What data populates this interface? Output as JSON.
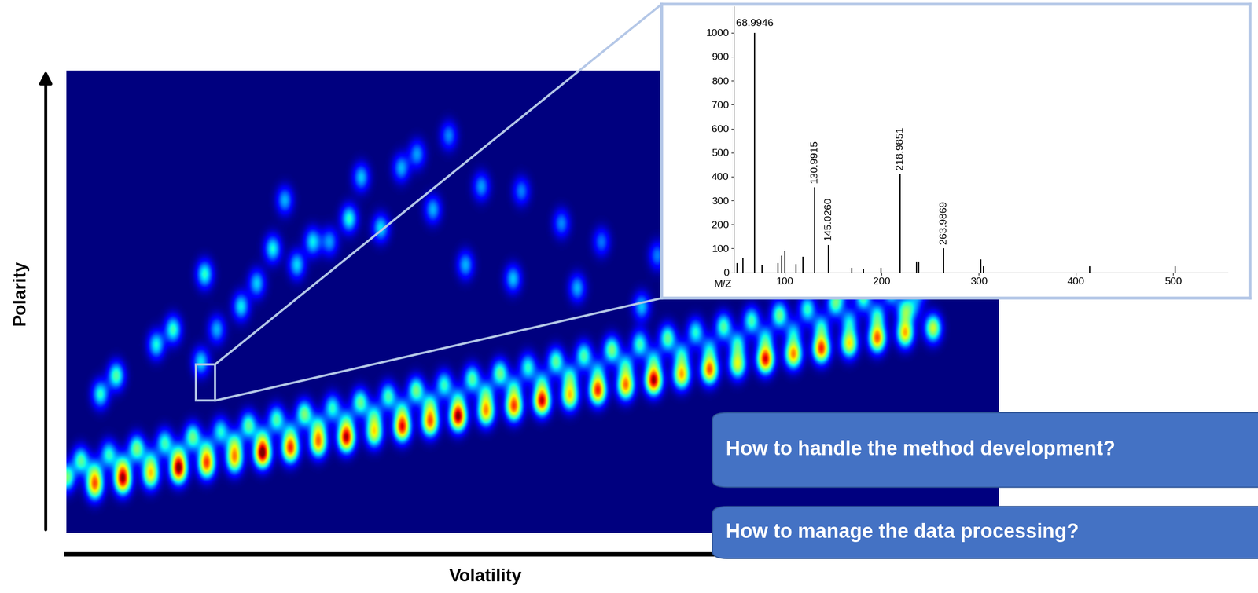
{
  "chart_data": [
    {
      "type": "heatmap",
      "x_label": "Volatility",
      "y_label": "Polarity",
      "xlim": [
        0,
        100
      ],
      "ylim": [
        0,
        100
      ],
      "zlim": [
        0,
        100
      ],
      "tick_labels": false,
      "x": [
        3,
        6,
        9,
        12,
        15,
        18,
        21,
        24,
        27,
        30,
        33,
        36,
        39,
        42,
        45,
        48,
        51,
        54,
        57,
        60,
        63,
        66,
        69,
        72,
        75,
        78,
        81,
        84,
        87,
        90,
        93,
        1.5,
        4.5,
        7.5,
        10.5,
        13.5,
        16.5,
        19.5,
        22.5,
        25.5,
        28.5,
        31.5,
        34.5,
        37.5,
        40.5,
        43.5,
        46.5,
        49.5,
        52.5,
        55.5,
        58.5,
        61.5,
        64.5,
        67.5,
        70.5,
        73.5,
        76.5,
        79.5,
        82.5,
        85.5,
        88.5,
        91.5,
        0,
        3,
        6,
        9,
        12,
        15,
        18,
        21,
        24,
        27,
        30,
        33,
        36,
        39,
        42,
        45,
        48,
        51,
        54,
        57,
        60,
        63,
        66,
        69,
        72,
        75,
        78,
        81,
        84,
        87,
        90,
        5.3,
        3.6,
        9.6,
        11.4,
        14.4,
        14.8,
        16.1,
        18.7,
        20.4,
        22.1,
        23.4,
        24.7,
        26.4,
        28.2,
        30.3,
        31.6,
        33.7,
        35.9,
        37.6,
        39.3,
        41,
        42.8,
        44.5,
        47.9,
        48.8,
        53.1,
        54.8,
        57.4,
        61.7,
        63.4,
        68.6,
        75.5,
        83.2,
        91
      ],
      "y": [
        10.1,
        11.3,
        12.4,
        13.6,
        14.7,
        15.8,
        17.0,
        18.1,
        19.3,
        20.4,
        21.5,
        22.7,
        23.8,
        25.0,
        26.1,
        27.2,
        28.4,
        29.5,
        30.7,
        31.8,
        32.9,
        34.1,
        35.2,
        36.4,
        37.5,
        38.6,
        39.8,
        40.9,
        42.1,
        43.2,
        44.3,
        15.6,
        16.9,
        18.2,
        19.4,
        20.7,
        21.9,
        23.2,
        24.5,
        25.7,
        27.0,
        28.2,
        29.5,
        30.8,
        32.0,
        33.3,
        34.5,
        35.8,
        37.1,
        38.3,
        39.6,
        40.8,
        42.1,
        43.4,
        44.6,
        45.9,
        47.1,
        48.4,
        49.7,
        50.9,
        52.2,
        53.4,
        12.0,
        13.2,
        14.4,
        15.6,
        16.8,
        18.0,
        19.2,
        20.4,
        21.6,
        22.8,
        24.0,
        25.2,
        26.4,
        27.6,
        28.8,
        30.0,
        31.2,
        32.4,
        33.6,
        34.8,
        36.0,
        37.2,
        38.4,
        39.6,
        40.8,
        42.0,
        43.2,
        44.4,
        45.6,
        46.8,
        48.0,
        34,
        30,
        40.7,
        44,
        37,
        56,
        44,
        49,
        54,
        61.5,
        72,
        58,
        63,
        63,
        68,
        77,
        66,
        79,
        82,
        70,
        86,
        58,
        75,
        55,
        74,
        67,
        53,
        63,
        49,
        60,
        58,
        55,
        53,
        49
      ],
      "values": [
        70,
        85,
        60,
        90,
        75,
        65,
        95,
        80,
        70,
        90,
        60,
        85,
        75,
        95,
        70,
        80,
        90,
        65,
        85,
        75,
        95,
        70,
        80,
        60,
        90,
        75,
        85,
        65,
        80,
        70,
        60,
        45,
        40,
        50,
        42,
        48,
        38,
        46,
        44,
        50,
        40,
        47,
        43,
        49,
        41,
        45,
        48,
        40,
        46,
        44,
        50,
        42,
        47,
        39,
        45,
        43,
        48,
        41,
        46,
        44,
        40,
        42,
        50,
        35,
        40,
        30,
        38,
        34,
        42,
        36,
        30,
        40,
        33,
        37,
        35,
        41,
        32,
        39,
        36,
        34,
        40,
        31,
        38,
        35,
        37,
        33,
        39,
        36,
        32,
        38,
        34,
        40,
        45,
        45,
        40,
        38,
        42,
        35,
        40,
        30,
        36,
        33,
        38,
        30,
        34,
        36,
        28,
        40,
        32,
        35,
        30,
        28,
        30,
        26,
        30,
        28,
        32,
        25,
        26,
        30,
        24,
        32,
        25,
        24,
        22,
        22,
        20
      ]
    },
    {
      "type": "stem",
      "x_label": "M/Z",
      "color": "#000000",
      "x": [
        51,
        57,
        68.9946,
        77,
        93,
        97,
        100,
        112,
        119,
        130.9915,
        145.026,
        169,
        181,
        199,
        218.9851,
        236,
        238,
        263.9869,
        302,
        305,
        414,
        502
      ],
      "values": [
        40,
        60,
        1000,
        30,
        40,
        70,
        90,
        35,
        65,
        355,
        115,
        20,
        15,
        20,
        410,
        45,
        45,
        100,
        55,
        25,
        25,
        25
      ],
      "labels": [
        null,
        null,
        "68.9946",
        null,
        null,
        null,
        null,
        null,
        null,
        "130.9915",
        "145.0260",
        null,
        null,
        null,
        "218.9851",
        null,
        null,
        "263.9869",
        null,
        null,
        null,
        null
      ],
      "xlim": [
        48,
        556
      ],
      "ylim": [
        0,
        1110
      ],
      "xticks": [
        100,
        200,
        300,
        400,
        500
      ],
      "yticks": [
        0,
        100,
        200,
        300,
        400,
        500,
        600,
        700,
        800,
        900,
        1000
      ]
    }
  ],
  "annotations": [
    "How to handle the method development?",
    "How to manage the data processing?"
  ]
}
